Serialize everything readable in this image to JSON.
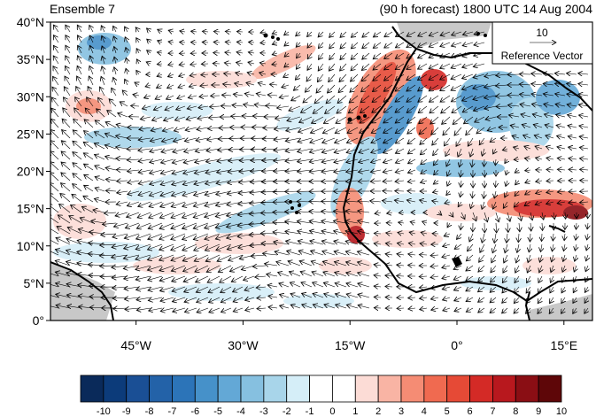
{
  "header": {
    "left_title": "Ensemble 7",
    "right_title": "(90 h forecast) 1800 UTC 14 Aug 2004"
  },
  "map": {
    "lat_labels": [
      "40°N",
      "35°N",
      "30°N",
      "25°N",
      "20°N",
      "15°N",
      "10°N",
      "5°N",
      "0°"
    ],
    "lat_values": [
      40,
      35,
      30,
      25,
      20,
      15,
      10,
      5,
      0
    ],
    "lon_labels": [
      "45°W",
      "30°W",
      "15°W",
      "0°",
      "15°E"
    ],
    "lon_values": [
      -45,
      -30,
      -15,
      0,
      15
    ],
    "extent": {
      "lon_min": -57,
      "lon_max": 19,
      "lat_min": 0,
      "lat_max": 40
    },
    "land_color": "#c8c8c8",
    "vector_color": "#000000"
  },
  "reference_vector": {
    "magnitude": "10",
    "label": "Reference Vector"
  },
  "colorbar": {
    "labels": [
      "-10",
      "-9",
      "-8",
      "-7",
      "-6",
      "-5",
      "-4",
      "-3",
      "-2",
      "-1",
      "0",
      "1",
      "2",
      "3",
      "4",
      "5",
      "6",
      "7",
      "8",
      "9",
      "10"
    ],
    "colors": [
      "#0a2a5a",
      "#0c3b7a",
      "#1a4f95",
      "#2362a8",
      "#2c74b8",
      "#4691c9",
      "#63a8d6",
      "#86c0e0",
      "#a8d5ea",
      "#d5eef8",
      "#ffffff",
      "#ffffff",
      "#fcdcd6",
      "#f9b4a4",
      "#f58c74",
      "#f06a50",
      "#e64a36",
      "#d42a26",
      "#b8181e",
      "#8a0e14",
      "#5e0608"
    ]
  }
}
